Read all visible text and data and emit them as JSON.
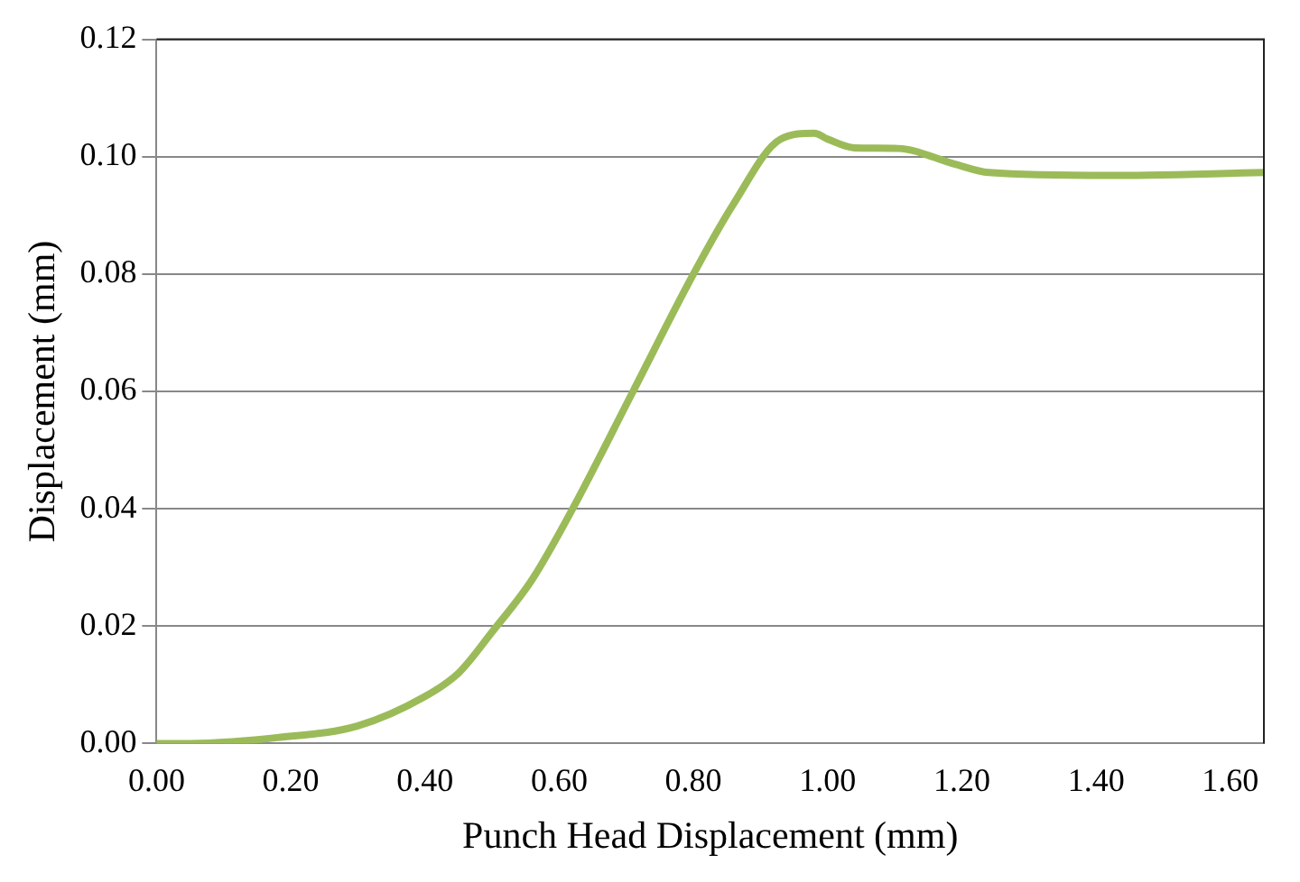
{
  "chart_data": {
    "type": "line",
    "xlabel": "Punch Head Displacement (mm)",
    "ylabel": "Displacement (mm)",
    "series": [
      {
        "color": "#9bbb59",
        "x": [
          0,
          0.05,
          0.18,
          0.3,
          0.4,
          0.45,
          0.5,
          0.56,
          0.62,
          0.71,
          0.8,
          0.86,
          0.93,
          0.98,
          1.0,
          1.04,
          1.105,
          1.19,
          1.24,
          1.42,
          1.65
        ],
        "values": [
          0,
          0,
          0.001,
          0.003,
          0.008,
          0.012,
          0.019,
          0.028,
          0.04,
          0.06,
          0.08,
          0.092,
          0.103,
          0.104,
          0.103,
          0.1015,
          0.1014,
          0.0987,
          0.0973,
          0.0968,
          0.0973
        ]
      }
    ],
    "xlim": [
      0,
      1.65
    ],
    "xticks": [
      {
        "value": 0,
        "label": "0.00"
      },
      {
        "value": 0.2,
        "label": "0.20"
      },
      {
        "value": 0.4,
        "label": "0.40"
      },
      {
        "value": 0.6,
        "label": "0.60"
      },
      {
        "value": 0.8,
        "label": "0.80"
      },
      {
        "value": 1.0,
        "label": "1.00"
      },
      {
        "value": 1.2,
        "label": "1.20"
      },
      {
        "value": 1.4,
        "label": "1.40"
      },
      {
        "value": 1.6,
        "label": "1.60"
      }
    ],
    "ylim": [
      0,
      0.12
    ],
    "yticks": [
      {
        "value": 0,
        "label": "0.00"
      },
      {
        "value": 0.02,
        "label": "0.02"
      },
      {
        "value": 0.04,
        "label": "0.04"
      },
      {
        "value": 0.06,
        "label": "0.06"
      },
      {
        "value": 0.08,
        "label": "0.08"
      },
      {
        "value": 0.1,
        "label": "0.10"
      },
      {
        "value": 0.12,
        "label": "0.12"
      }
    ],
    "grid": "y",
    "legend": false,
    "marker": "none",
    "line_style": "solid"
  }
}
